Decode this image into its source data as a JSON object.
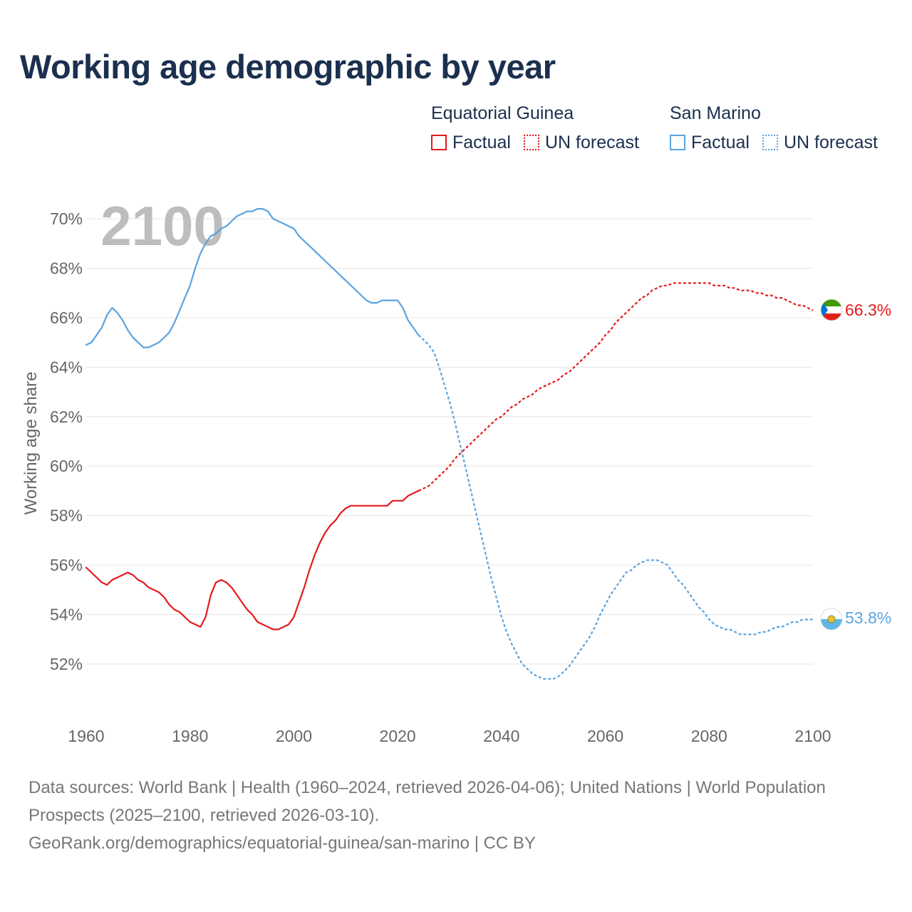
{
  "title": "Working age demographic by year",
  "legend": {
    "groups": [
      {
        "name": "Equatorial Guinea",
        "color": "#e31a1c",
        "items": [
          {
            "label": "Factual",
            "style": "solid"
          },
          {
            "label": "UN forecast",
            "style": "dotted"
          }
        ]
      },
      {
        "name": "San Marino",
        "color": "#5ba3e0",
        "items": [
          {
            "label": "Factual",
            "style": "solid"
          },
          {
            "label": "UN forecast",
            "style": "dotted"
          }
        ]
      }
    ]
  },
  "footer": {
    "line1": "Data sources: World Bank | Health (1960–2024, retrieved 2026-04-06); United Nations | World Population Prospects (2025–2100, retrieved 2026-03-10).",
    "line2": "GeoRank.org/demographics/equatorial-guinea/san-marino | CC BY"
  },
  "chart_data": {
    "type": "line",
    "title": "Working age demographic by year",
    "ylabel": "Working age share",
    "xlabel": "",
    "xlim": [
      1960,
      2100
    ],
    "ylim": [
      50,
      71
    ],
    "x_ticks": [
      1960,
      1980,
      2000,
      2020,
      2040,
      2060,
      2080,
      2100
    ],
    "x_tick_labels": [
      "1960",
      "1980",
      "2000",
      "2020",
      "2040",
      "2060",
      "2080",
      "2100"
    ],
    "y_ticks": [
      52,
      54,
      56,
      58,
      60,
      62,
      64,
      66,
      68,
      70
    ],
    "y_tick_labels": [
      "52%",
      "54%",
      "56%",
      "58%",
      "60%",
      "62%",
      "64%",
      "66%",
      "68%",
      "70%"
    ],
    "grid": true,
    "year_label": "2100",
    "forecast_start": 2024,
    "series": [
      {
        "name": "Equatorial Guinea",
        "color": "#e31a1c",
        "flag_icon": "equatorial-guinea-flag-icon",
        "end_label": "66.3%",
        "points": [
          [
            1960,
            55.9
          ],
          [
            1961,
            55.7
          ],
          [
            1962,
            55.5
          ],
          [
            1963,
            55.3
          ],
          [
            1964,
            55.2
          ],
          [
            1965,
            55.4
          ],
          [
            1966,
            55.5
          ],
          [
            1967,
            55.6
          ],
          [
            1968,
            55.7
          ],
          [
            1969,
            55.6
          ],
          [
            1970,
            55.4
          ],
          [
            1971,
            55.3
          ],
          [
            1972,
            55.1
          ],
          [
            1973,
            55.0
          ],
          [
            1974,
            54.9
          ],
          [
            1975,
            54.7
          ],
          [
            1976,
            54.4
          ],
          [
            1977,
            54.2
          ],
          [
            1978,
            54.1
          ],
          [
            1979,
            53.9
          ],
          [
            1980,
            53.7
          ],
          [
            1981,
            53.6
          ],
          [
            1982,
            53.5
          ],
          [
            1983,
            53.9
          ],
          [
            1984,
            54.8
          ],
          [
            1985,
            55.3
          ],
          [
            1986,
            55.4
          ],
          [
            1987,
            55.3
          ],
          [
            1988,
            55.1
          ],
          [
            1989,
            54.8
          ],
          [
            1990,
            54.5
          ],
          [
            1991,
            54.2
          ],
          [
            1992,
            54.0
          ],
          [
            1993,
            53.7
          ],
          [
            1994,
            53.6
          ],
          [
            1995,
            53.5
          ],
          [
            1996,
            53.4
          ],
          [
            1997,
            53.4
          ],
          [
            1998,
            53.5
          ],
          [
            1999,
            53.6
          ],
          [
            2000,
            53.9
          ],
          [
            2001,
            54.5
          ],
          [
            2002,
            55.1
          ],
          [
            2003,
            55.8
          ],
          [
            2004,
            56.4
          ],
          [
            2005,
            56.9
          ],
          [
            2006,
            57.3
          ],
          [
            2007,
            57.6
          ],
          [
            2008,
            57.8
          ],
          [
            2009,
            58.1
          ],
          [
            2010,
            58.3
          ],
          [
            2011,
            58.4
          ],
          [
            2012,
            58.4
          ],
          [
            2013,
            58.4
          ],
          [
            2014,
            58.4
          ],
          [
            2015,
            58.4
          ],
          [
            2016,
            58.4
          ],
          [
            2017,
            58.4
          ],
          [
            2018,
            58.4
          ],
          [
            2019,
            58.6
          ],
          [
            2020,
            58.6
          ],
          [
            2021,
            58.6
          ],
          [
            2022,
            58.8
          ],
          [
            2023,
            58.9
          ],
          [
            2024,
            59.0
          ],
          [
            2025,
            59.1
          ],
          [
            2026,
            59.2
          ],
          [
            2027,
            59.4
          ],
          [
            2028,
            59.6
          ],
          [
            2029,
            59.8
          ],
          [
            2030,
            60.0
          ],
          [
            2031,
            60.3
          ],
          [
            2032,
            60.5
          ],
          [
            2033,
            60.7
          ],
          [
            2034,
            60.9
          ],
          [
            2035,
            61.1
          ],
          [
            2036,
            61.3
          ],
          [
            2037,
            61.5
          ],
          [
            2038,
            61.7
          ],
          [
            2039,
            61.9
          ],
          [
            2040,
            62.0
          ],
          [
            2041,
            62.2
          ],
          [
            2042,
            62.4
          ],
          [
            2043,
            62.5
          ],
          [
            2044,
            62.7
          ],
          [
            2045,
            62.8
          ],
          [
            2046,
            62.9
          ],
          [
            2047,
            63.1
          ],
          [
            2048,
            63.2
          ],
          [
            2049,
            63.3
          ],
          [
            2050,
            63.4
          ],
          [
            2051,
            63.5
          ],
          [
            2052,
            63.7
          ],
          [
            2053,
            63.8
          ],
          [
            2054,
            64.0
          ],
          [
            2055,
            64.2
          ],
          [
            2056,
            64.4
          ],
          [
            2057,
            64.6
          ],
          [
            2058,
            64.8
          ],
          [
            2059,
            65.0
          ],
          [
            2060,
            65.3
          ],
          [
            2061,
            65.5
          ],
          [
            2062,
            65.8
          ],
          [
            2063,
            66.0
          ],
          [
            2064,
            66.2
          ],
          [
            2065,
            66.4
          ],
          [
            2066,
            66.6
          ],
          [
            2067,
            66.8
          ],
          [
            2068,
            66.9
          ],
          [
            2069,
            67.1
          ],
          [
            2070,
            67.2
          ],
          [
            2071,
            67.3
          ],
          [
            2072,
            67.3
          ],
          [
            2073,
            67.4
          ],
          [
            2074,
            67.4
          ],
          [
            2075,
            67.4
          ],
          [
            2076,
            67.4
          ],
          [
            2077,
            67.4
          ],
          [
            2078,
            67.4
          ],
          [
            2079,
            67.4
          ],
          [
            2080,
            67.4
          ],
          [
            2081,
            67.3
          ],
          [
            2082,
            67.3
          ],
          [
            2083,
            67.3
          ],
          [
            2084,
            67.2
          ],
          [
            2085,
            67.2
          ],
          [
            2086,
            67.1
          ],
          [
            2087,
            67.1
          ],
          [
            2088,
            67.1
          ],
          [
            2089,
            67.0
          ],
          [
            2090,
            67.0
          ],
          [
            2091,
            66.9
          ],
          [
            2092,
            66.9
          ],
          [
            2093,
            66.8
          ],
          [
            2094,
            66.8
          ],
          [
            2095,
            66.7
          ],
          [
            2096,
            66.6
          ],
          [
            2097,
            66.5
          ],
          [
            2098,
            66.5
          ],
          [
            2099,
            66.4
          ],
          [
            2100,
            66.3
          ]
        ]
      },
      {
        "name": "San Marino",
        "color": "#5ba3e0",
        "flag_icon": "san-marino-flag-icon",
        "end_label": "53.8%",
        "points": [
          [
            1960,
            64.9
          ],
          [
            1961,
            65.0
          ],
          [
            1962,
            65.3
          ],
          [
            1963,
            65.6
          ],
          [
            1964,
            66.1
          ],
          [
            1965,
            66.4
          ],
          [
            1966,
            66.2
          ],
          [
            1967,
            65.9
          ],
          [
            1968,
            65.5
          ],
          [
            1969,
            65.2
          ],
          [
            1970,
            65.0
          ],
          [
            1971,
            64.8
          ],
          [
            1972,
            64.8
          ],
          [
            1973,
            64.9
          ],
          [
            1974,
            65.0
          ],
          [
            1975,
            65.2
          ],
          [
            1976,
            65.4
          ],
          [
            1977,
            65.8
          ],
          [
            1978,
            66.3
          ],
          [
            1979,
            66.8
          ],
          [
            1980,
            67.3
          ],
          [
            1981,
            68.0
          ],
          [
            1982,
            68.6
          ],
          [
            1983,
            69.0
          ],
          [
            1984,
            69.3
          ],
          [
            1985,
            69.4
          ],
          [
            1986,
            69.6
          ],
          [
            1987,
            69.7
          ],
          [
            1988,
            69.9
          ],
          [
            1989,
            70.1
          ],
          [
            1990,
            70.2
          ],
          [
            1991,
            70.3
          ],
          [
            1992,
            70.3
          ],
          [
            1993,
            70.4
          ],
          [
            1994,
            70.4
          ],
          [
            1995,
            70.3
          ],
          [
            1996,
            70.0
          ],
          [
            1997,
            69.9
          ],
          [
            1998,
            69.8
          ],
          [
            1999,
            69.7
          ],
          [
            2000,
            69.6
          ],
          [
            2001,
            69.3
          ],
          [
            2002,
            69.1
          ],
          [
            2003,
            68.9
          ],
          [
            2004,
            68.7
          ],
          [
            2005,
            68.5
          ],
          [
            2006,
            68.3
          ],
          [
            2007,
            68.1
          ],
          [
            2008,
            67.9
          ],
          [
            2009,
            67.7
          ],
          [
            2010,
            67.5
          ],
          [
            2011,
            67.3
          ],
          [
            2012,
            67.1
          ],
          [
            2013,
            66.9
          ],
          [
            2014,
            66.7
          ],
          [
            2015,
            66.6
          ],
          [
            2016,
            66.6
          ],
          [
            2017,
            66.7
          ],
          [
            2018,
            66.7
          ],
          [
            2019,
            66.7
          ],
          [
            2020,
            66.7
          ],
          [
            2021,
            66.4
          ],
          [
            2022,
            65.9
          ],
          [
            2023,
            65.6
          ],
          [
            2024,
            65.3
          ],
          [
            2025,
            65.1
          ],
          [
            2026,
            64.9
          ],
          [
            2027,
            64.6
          ],
          [
            2028,
            64.0
          ],
          [
            2029,
            63.3
          ],
          [
            2030,
            62.6
          ],
          [
            2031,
            61.8
          ],
          [
            2032,
            60.9
          ],
          [
            2033,
            60.0
          ],
          [
            2034,
            59.1
          ],
          [
            2035,
            58.2
          ],
          [
            2036,
            57.3
          ],
          [
            2037,
            56.4
          ],
          [
            2038,
            55.5
          ],
          [
            2039,
            54.7
          ],
          [
            2040,
            53.9
          ],
          [
            2041,
            53.3
          ],
          [
            2042,
            52.8
          ],
          [
            2043,
            52.4
          ],
          [
            2044,
            52.0
          ],
          [
            2045,
            51.8
          ],
          [
            2046,
            51.6
          ],
          [
            2047,
            51.5
          ],
          [
            2048,
            51.4
          ],
          [
            2049,
            51.4
          ],
          [
            2050,
            51.4
          ],
          [
            2051,
            51.5
          ],
          [
            2052,
            51.7
          ],
          [
            2053,
            51.9
          ],
          [
            2054,
            52.2
          ],
          [
            2055,
            52.5
          ],
          [
            2056,
            52.8
          ],
          [
            2057,
            53.1
          ],
          [
            2058,
            53.5
          ],
          [
            2059,
            54.0
          ],
          [
            2060,
            54.4
          ],
          [
            2061,
            54.8
          ],
          [
            2062,
            55.1
          ],
          [
            2063,
            55.4
          ],
          [
            2064,
            55.7
          ],
          [
            2065,
            55.8
          ],
          [
            2066,
            56.0
          ],
          [
            2067,
            56.1
          ],
          [
            2068,
            56.2
          ],
          [
            2069,
            56.2
          ],
          [
            2070,
            56.2
          ],
          [
            2071,
            56.1
          ],
          [
            2072,
            56.0
          ],
          [
            2073,
            55.7
          ],
          [
            2074,
            55.4
          ],
          [
            2075,
            55.2
          ],
          [
            2076,
            54.9
          ],
          [
            2077,
            54.6
          ],
          [
            2078,
            54.3
          ],
          [
            2079,
            54.1
          ],
          [
            2080,
            53.8
          ],
          [
            2081,
            53.6
          ],
          [
            2082,
            53.5
          ],
          [
            2083,
            53.4
          ],
          [
            2084,
            53.4
          ],
          [
            2085,
            53.3
          ],
          [
            2086,
            53.2
          ],
          [
            2087,
            53.2
          ],
          [
            2088,
            53.2
          ],
          [
            2089,
            53.2
          ],
          [
            2090,
            53.3
          ],
          [
            2091,
            53.3
          ],
          [
            2092,
            53.4
          ],
          [
            2093,
            53.5
          ],
          [
            2094,
            53.5
          ],
          [
            2095,
            53.6
          ],
          [
            2096,
            53.7
          ],
          [
            2097,
            53.7
          ],
          [
            2098,
            53.8
          ],
          [
            2099,
            53.8
          ],
          [
            2100,
            53.8
          ]
        ]
      }
    ]
  }
}
